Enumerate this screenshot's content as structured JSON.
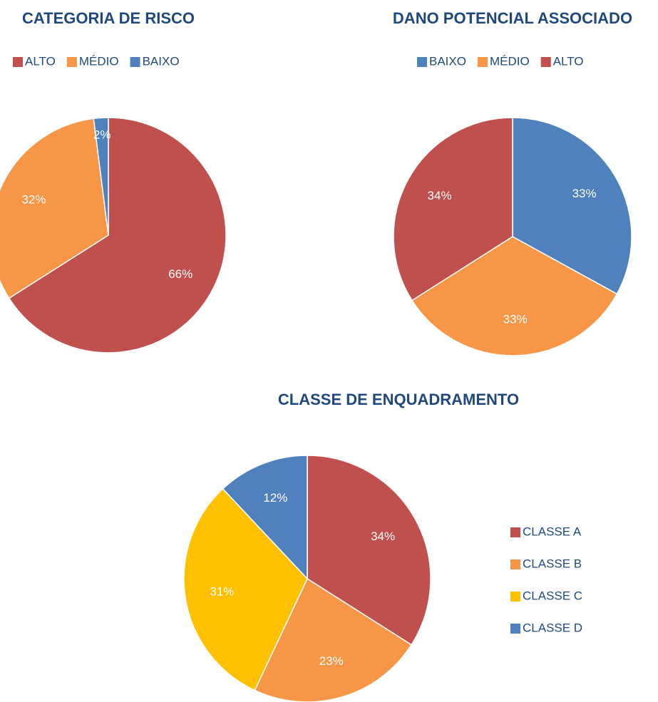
{
  "chart_data": [
    {
      "type": "pie",
      "title": "CATEGORIA DE RISCO",
      "categories": [
        "ALTO",
        "MÉDIO",
        "BAIXO"
      ],
      "values": [
        66,
        32,
        2
      ],
      "value_labels": [
        "66%",
        "32%",
        "2%"
      ],
      "colors": [
        "#c0504d",
        "#f79646",
        "#4f81bd"
      ],
      "legend": "top"
    },
    {
      "type": "pie",
      "title": "DANO POTENCIAL ASSOCIADO",
      "categories": [
        "BAIXO",
        "MÉDIO",
        "ALTO"
      ],
      "values": [
        33,
        33,
        34
      ],
      "value_labels": [
        "33%",
        "33%",
        "34%"
      ],
      "colors": [
        "#4f81bd",
        "#f79646",
        "#c0504d"
      ],
      "legend": "top"
    },
    {
      "type": "pie",
      "title": "CLASSE DE ENQUADRAMENTO",
      "categories": [
        "CLASSE A",
        "CLASSE B",
        "CLASSE C",
        "CLASSE D"
      ],
      "values": [
        34,
        23,
        31,
        12
      ],
      "value_labels": [
        "34%",
        "23%",
        "31%",
        "12%"
      ],
      "colors": [
        "#c0504d",
        "#f79646",
        "#ffc000",
        "#4f81bd"
      ],
      "legend": "right"
    }
  ]
}
